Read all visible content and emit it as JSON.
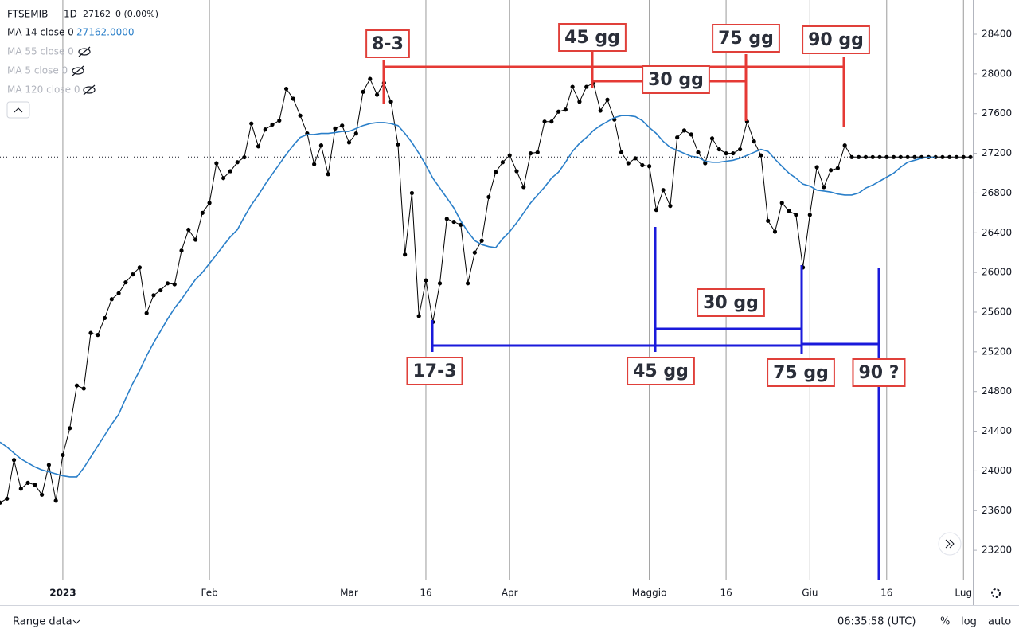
{
  "chart_data": {
    "type": "line",
    "categories": [
      null,
      null,
      null,
      null,
      null,
      null,
      null,
      null,
      null,
      "2023",
      null,
      null,
      null,
      null,
      null,
      null,
      null,
      null,
      null,
      null,
      null,
      null,
      null,
      null,
      null,
      null,
      null,
      null,
      null,
      null,
      "Feb",
      null,
      null,
      null,
      null,
      null,
      null,
      null,
      null,
      null,
      null,
      null,
      null,
      null,
      null,
      null,
      null,
      null,
      null,
      null,
      "Mar",
      null,
      null,
      null,
      null,
      null,
      null,
      null,
      null,
      null,
      null,
      "16",
      null,
      null,
      null,
      null,
      null,
      null,
      null,
      null,
      null,
      null,
      null,
      "Apr",
      null,
      null,
      null,
      null,
      null,
      null,
      null,
      null,
      null,
      null,
      null,
      null,
      null,
      null,
      null,
      null,
      null,
      null,
      null,
      "Maggio",
      null,
      null,
      null,
      null,
      null,
      null,
      null,
      null,
      null,
      null,
      "16",
      null,
      null,
      null,
      null,
      null,
      null,
      null,
      null,
      null,
      null,
      null,
      "Giu",
      null,
      null,
      null,
      null,
      null,
      null,
      null,
      null,
      null,
      null,
      "16",
      null,
      null,
      null,
      null,
      null,
      null,
      null,
      null,
      null,
      null,
      "Lug",
      null
    ],
    "series": [
      {
        "name": "FTSEMIB",
        "color": "#000000",
        "values": [
          23680,
          23720,
          24110,
          23820,
          23880,
          23860,
          23760,
          24060,
          23700,
          24160,
          24430,
          24860,
          24830,
          25390,
          25370,
          25540,
          25730,
          25790,
          25900,
          25980,
          26050,
          25590,
          25770,
          25820,
          25890,
          25880,
          26220,
          26430,
          26330,
          26600,
          26700,
          27100,
          26950,
          27020,
          27110,
          27160,
          27500,
          27270,
          27440,
          27490,
          27530,
          27850,
          27750,
          27580,
          27400,
          27090,
          27280,
          26990,
          27450,
          27480,
          27310,
          27400,
          27820,
          27950,
          27790,
          27910,
          27720,
          27290,
          26180,
          26800,
          25560,
          25920,
          25500,
          25890,
          26540,
          26510,
          26480,
          25890,
          26200,
          26320,
          26760,
          27010,
          27110,
          27180,
          27020,
          26860,
          27200,
          27210,
          27520,
          27520,
          27620,
          27640,
          27870,
          27720,
          27870,
          27910,
          27630,
          27740,
          27540,
          27210,
          27100,
          27150,
          27080,
          27070,
          26630,
          26830,
          26670,
          27360,
          27430,
          27390,
          27210,
          27100,
          27350,
          27240,
          27200,
          27200,
          27240,
          27520,
          27320,
          27180,
          26520,
          26410,
          26700,
          26620,
          26580,
          26050,
          26580,
          27060,
          26860,
          27030,
          27050,
          27280,
          27162,
          27162,
          27162,
          27162,
          27162,
          27162,
          27162,
          27162,
          27162,
          27162,
          27162,
          27162,
          27162,
          27162,
          27162,
          27162,
          27162,
          27162
        ]
      },
      {
        "name": "MA 14 close 0",
        "color": "#2a7fc9",
        "values": [
          24290,
          24240,
          24180,
          24120,
          24080,
          24040,
          24010,
          23990,
          23970,
          23950,
          23940,
          23940,
          24030,
          24140,
          24250,
          24360,
          24470,
          24570,
          24730,
          24880,
          25010,
          25160,
          25290,
          25410,
          25530,
          25640,
          25730,
          25830,
          25930,
          26000,
          26090,
          26180,
          26270,
          26360,
          26430,
          26560,
          26680,
          26780,
          26890,
          26990,
          27090,
          27190,
          27280,
          27360,
          27390,
          27390,
          27400,
          27400,
          27410,
          27420,
          27420,
          27450,
          27480,
          27500,
          27510,
          27510,
          27500,
          27480,
          27400,
          27310,
          27200,
          27080,
          26950,
          26850,
          26750,
          26650,
          26520,
          26410,
          26320,
          26280,
          26260,
          26250,
          26340,
          26410,
          26500,
          26600,
          26700,
          26780,
          26860,
          26950,
          27010,
          27110,
          27220,
          27300,
          27360,
          27430,
          27480,
          27520,
          27560,
          27580,
          27580,
          27570,
          27530,
          27460,
          27400,
          27320,
          27260,
          27230,
          27200,
          27170,
          27160,
          27120,
          27110,
          27110,
          27120,
          27130,
          27150,
          27180,
          27210,
          27240,
          27220,
          27140,
          27070,
          27000,
          26950,
          26890,
          26870,
          26830,
          26820,
          26810,
          26790,
          26780,
          26780,
          26800,
          26850,
          26880,
          26920,
          26960,
          27000,
          27060,
          27110,
          27130,
          27150,
          27160,
          27160,
          null,
          null,
          null,
          null,
          null
        ]
      }
    ],
    "ylim": [
      22904,
      28745
    ],
    "yticks": [
      23200,
      23600,
      24000,
      24400,
      24800,
      25200,
      25600,
      26000,
      26400,
      26800,
      27200,
      27600,
      28000,
      28400
    ],
    "grid": "vertical",
    "annotations": [
      {
        "text": "8-3",
        "color": "#e0403a"
      },
      {
        "text": "45 gg",
        "color": "#e0403a"
      },
      {
        "text": "75 gg",
        "color": "#e0403a"
      },
      {
        "text": "90 gg",
        "color": "#e0403a"
      },
      {
        "text": "30 gg",
        "color": "#e0403a"
      },
      {
        "text": "17-3",
        "color": "#e0403a"
      },
      {
        "text": "45 gg",
        "color": "#e0403a"
      },
      {
        "text": "75 gg",
        "color": "#e0403a"
      },
      {
        "text": "90 ?",
        "color": "#e0403a"
      },
      {
        "text": "30 gg",
        "color": "#e0403a"
      }
    ]
  },
  "header": {
    "interval": "1D",
    "last": "27162",
    "change": "0 (0.00%)",
    "ma_value": "27162.0000",
    "hidden_studies": [
      "MA 55 close 0",
      "MA 5 close 0",
      "MA 120 close 0"
    ]
  },
  "footer": {
    "range": "Range data",
    "time": "06:35:58 (UTC)",
    "percent": "%",
    "log": "log",
    "auto": "auto"
  }
}
